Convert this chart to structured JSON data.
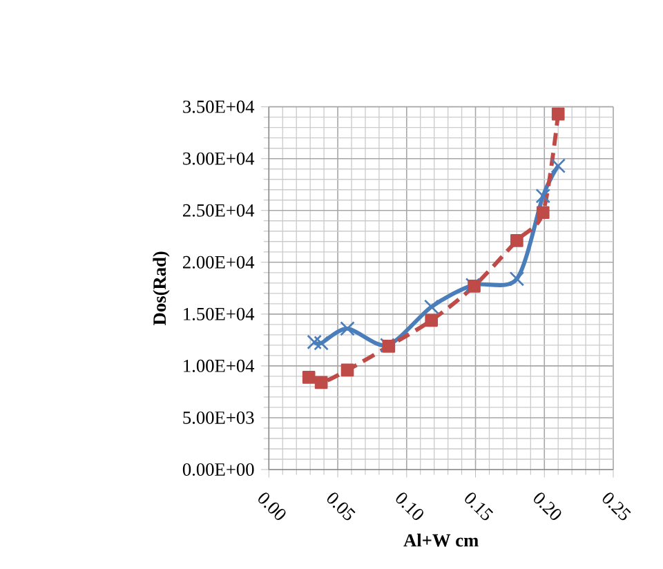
{
  "chart_data": {
    "type": "line",
    "xlabel": "Al+W cm",
    "ylabel": "Dos(Rad)",
    "xlim": [
      0,
      0.25
    ],
    "xticks": [
      {
        "value": 0,
        "label": "0.00"
      },
      {
        "value": 0.05,
        "label": "0.05"
      },
      {
        "value": 0.1,
        "label": "0.10"
      },
      {
        "value": 0.15,
        "label": "0.15"
      },
      {
        "value": 0.2,
        "label": "0.20"
      },
      {
        "value": 0.25,
        "label": "0.25"
      }
    ],
    "ylim": [
      0,
      35000
    ],
    "yticks": [
      {
        "value": 0,
        "label": "0.00E+00"
      },
      {
        "value": 5000,
        "label": "5.00E+03"
      },
      {
        "value": 10000,
        "label": "1.00E+04"
      },
      {
        "value": 15000,
        "label": "1.50E+04"
      },
      {
        "value": 20000,
        "label": "2.00E+04"
      },
      {
        "value": 25000,
        "label": "2.50E+04"
      },
      {
        "value": 30000,
        "label": "3.00E+04"
      },
      {
        "value": 35000,
        "label": "3.50E+04"
      }
    ],
    "grid": true,
    "series": [
      {
        "color": "#4a7ebb",
        "marker": "cross",
        "line_style": "solid",
        "x": [
          0.033,
          0.038,
          0.057,
          0.086,
          0.118,
          0.148,
          0.18,
          0.199,
          0.21
        ],
        "values": [
          12300,
          12200,
          13600,
          12000,
          15700,
          17800,
          18400,
          26400,
          29300
        ]
      },
      {
        "color": "#be4b48",
        "marker": "square",
        "line_style": "dashed",
        "x": [
          0.029,
          0.038,
          0.057,
          0.087,
          0.118,
          0.149,
          0.18,
          0.199,
          0.21
        ],
        "values": [
          8900,
          8400,
          9600,
          11900,
          14400,
          17700,
          22100,
          24800,
          34300
        ]
      }
    ]
  }
}
